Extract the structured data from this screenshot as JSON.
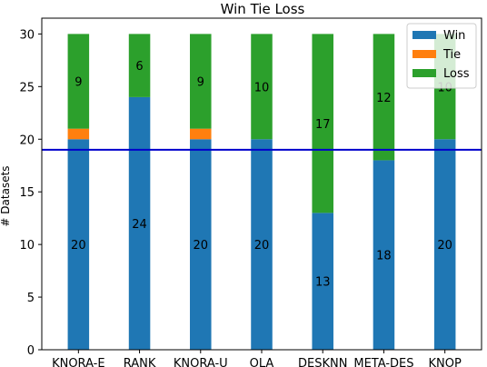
{
  "chart_data": {
    "type": "bar",
    "stacked": true,
    "title": "Win Tie Loss",
    "xlabel": "",
    "ylabel": "# Datasets",
    "categories": [
      "KNORA-E",
      "RANK",
      "KNORA-U",
      "OLA",
      "DESKNN",
      "META-DES",
      "KNOP"
    ],
    "series": [
      {
        "name": "Win",
        "color": "#1f77b4",
        "values": [
          20,
          24,
          20,
          20,
          13,
          18,
          20
        ]
      },
      {
        "name": "Tie",
        "color": "#ff7f0e",
        "values": [
          1,
          0,
          1,
          0,
          0,
          0,
          0
        ]
      },
      {
        "name": "Loss",
        "color": "#2ca02c",
        "values": [
          9,
          6,
          9,
          10,
          17,
          12,
          10
        ]
      }
    ],
    "bar_labels": {
      "Win": [
        "20",
        "24",
        "20",
        "20",
        "13",
        "18",
        "20"
      ],
      "Loss": [
        "9",
        "6",
        "9",
        "10",
        "17",
        "12",
        "10"
      ]
    },
    "reference_line": {
      "value": 19,
      "color": "#0000cc"
    },
    "ylim": [
      0,
      31.5
    ],
    "yticks": [
      0,
      5,
      10,
      15,
      20,
      25,
      30
    ],
    "legend_position": "top-right",
    "grid": false
  }
}
